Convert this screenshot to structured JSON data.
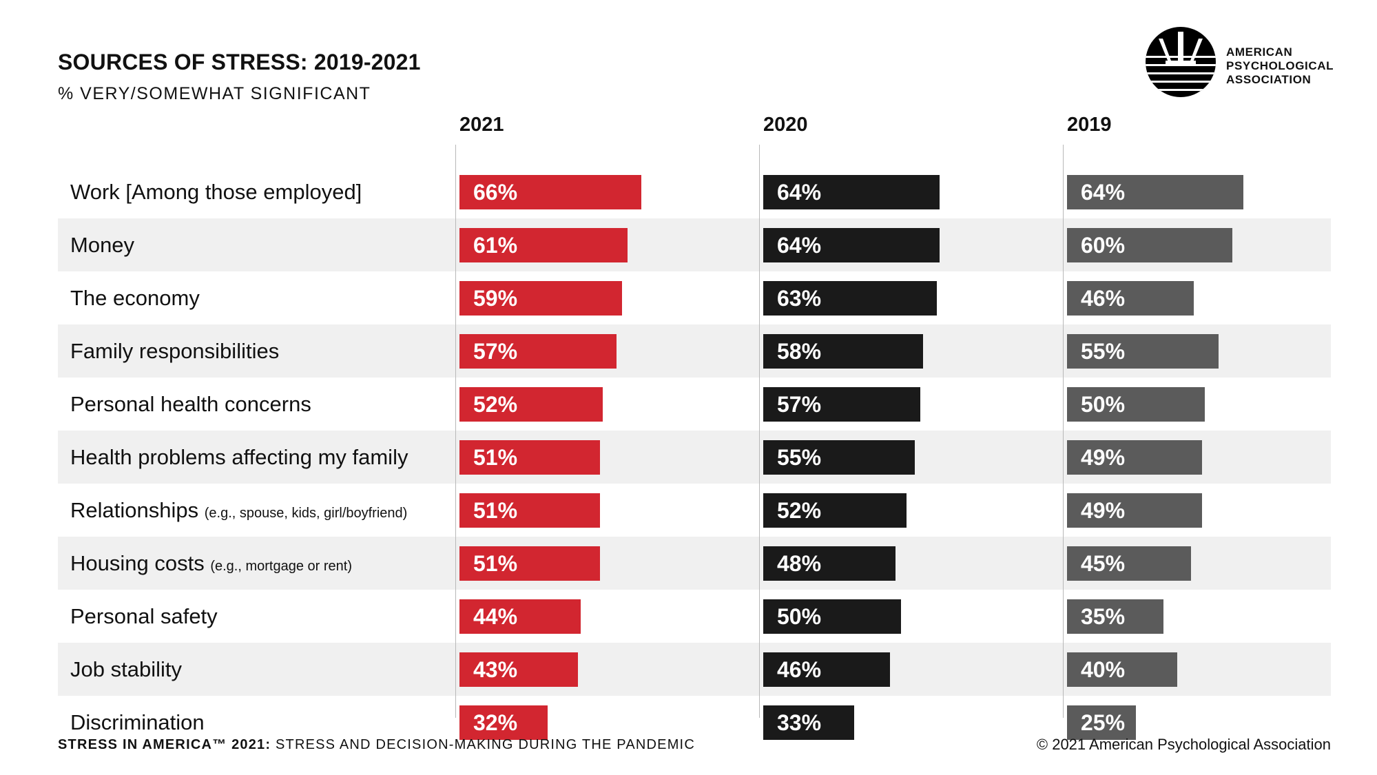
{
  "chart_data": {
    "type": "bar",
    "orientation": "horizontal",
    "title": "SOURCES OF STRESS: 2019-2021",
    "subtitle": "% VERY/SOMEWHAT SIGNIFICANT",
    "categories": [
      {
        "label": "Work [Among those employed]",
        "note": ""
      },
      {
        "label": "Money",
        "note": ""
      },
      {
        "label": "The economy",
        "note": ""
      },
      {
        "label": "Family responsibilities",
        "note": ""
      },
      {
        "label": "Personal health concerns",
        "note": ""
      },
      {
        "label": "Health problems affecting my family",
        "note": ""
      },
      {
        "label": "Relationships",
        "note": "(e.g., spouse, kids, girl/boyfriend)"
      },
      {
        "label": "Housing costs",
        "note": "(e.g., mortgage or rent)"
      },
      {
        "label": "Personal safety",
        "note": ""
      },
      {
        "label": "Job stability",
        "note": ""
      },
      {
        "label": "Discrimination",
        "note": ""
      }
    ],
    "series": [
      {
        "name": "2021",
        "color": "#d22630",
        "values": [
          66,
          61,
          59,
          57,
          52,
          51,
          51,
          51,
          44,
          43,
          32
        ]
      },
      {
        "name": "2020",
        "color": "#1a1a1a",
        "values": [
          64,
          64,
          63,
          58,
          57,
          55,
          52,
          48,
          50,
          46,
          33
        ]
      },
      {
        "name": "2019",
        "color": "#5b5b5b",
        "values": [
          64,
          60,
          46,
          55,
          50,
          49,
          49,
          45,
          35,
          40,
          25
        ]
      }
    ],
    "value_suffix": "%",
    "xlim": [
      0,
      100
    ],
    "grid": false,
    "legend": "none"
  },
  "logo": {
    "icon": "apa-psi-logo-icon",
    "lines": [
      "AMERICAN",
      "PSYCHOLOGICAL",
      "ASSOCIATION"
    ]
  },
  "footer": {
    "source_bold": "STRESS IN AMERICA™ 2021:",
    "source_text": " STRESS AND DECISION-MAKING DURING THE PANDEMIC",
    "copyright": "© 2021 American Psychological Association"
  }
}
